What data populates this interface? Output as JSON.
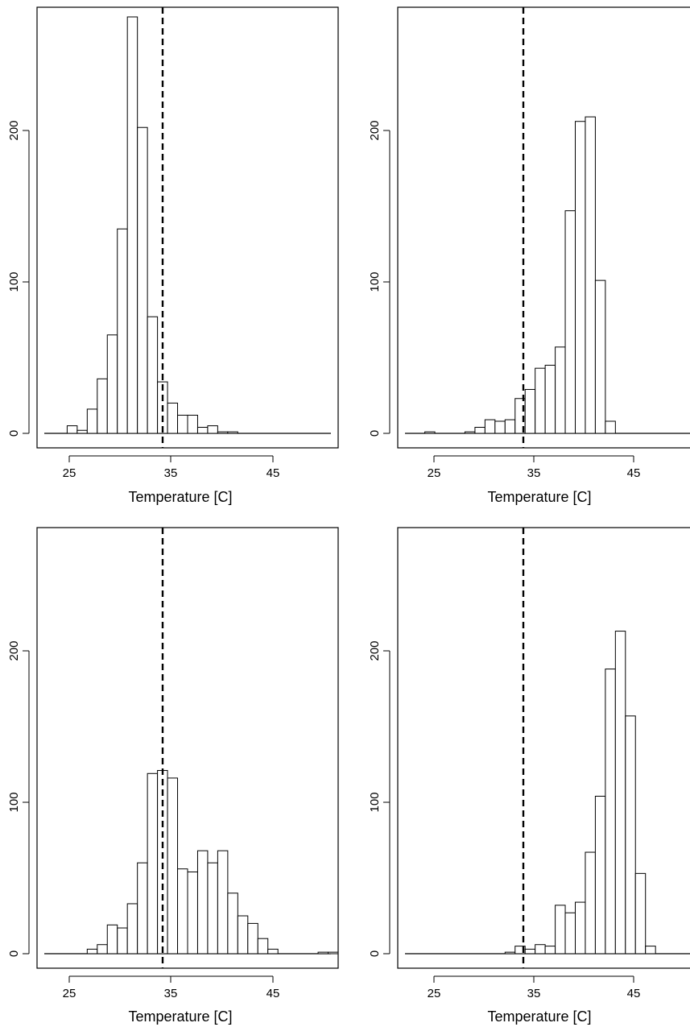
{
  "chart_data": [
    {
      "type": "bar",
      "xlabel": "Temperature [C]",
      "ylabel": "",
      "title": "",
      "xlim": [
        21,
        51
      ],
      "ylim": [
        -15,
        283
      ],
      "xticks": [
        "25",
        "35",
        "45"
      ],
      "yticks": [
        "0",
        "100",
        "200"
      ],
      "threshold": 34,
      "bin_width": 1,
      "bins": [
        {
          "x0": 24,
          "value": 5
        },
        {
          "x0": 25,
          "value": 2
        },
        {
          "x0": 26,
          "value": 16
        },
        {
          "x0": 27,
          "value": 36
        },
        {
          "x0": 28,
          "value": 65
        },
        {
          "x0": 29,
          "value": 135
        },
        {
          "x0": 30,
          "value": 275
        },
        {
          "x0": 31,
          "value": 202
        },
        {
          "x0": 32,
          "value": 77
        },
        {
          "x0": 33,
          "value": 34
        },
        {
          "x0": 34,
          "value": 20
        },
        {
          "x0": 35,
          "value": 12
        },
        {
          "x0": 36,
          "value": 12
        },
        {
          "x0": 37,
          "value": 4
        },
        {
          "x0": 38,
          "value": 5
        },
        {
          "x0": 39,
          "value": 1
        },
        {
          "x0": 40,
          "value": 1
        }
      ]
    },
    {
      "type": "bar",
      "xlabel": "Temperature [C]",
      "ylabel": "",
      "title": "",
      "xlim": [
        19.3,
        49
      ],
      "ylim": [
        -15,
        283
      ],
      "xticks": [
        "25",
        "35",
        "45"
      ],
      "yticks": [
        "0",
        "100",
        "200"
      ],
      "threshold": 34,
      "bin_width": 1,
      "bins": [
        {
          "x0": 22,
          "value": 1
        },
        {
          "x0": 26,
          "value": 1
        },
        {
          "x0": 27,
          "value": 4
        },
        {
          "x0": 28,
          "value": 9
        },
        {
          "x0": 29,
          "value": 8
        },
        {
          "x0": 30,
          "value": 9
        },
        {
          "x0": 31,
          "value": 23
        },
        {
          "x0": 32,
          "value": 29
        },
        {
          "x0": 33,
          "value": 43
        },
        {
          "x0": 34,
          "value": 45
        },
        {
          "x0": 35,
          "value": 57
        },
        {
          "x0": 36,
          "value": 147
        },
        {
          "x0": 37,
          "value": 206
        },
        {
          "x0": 38,
          "value": 209
        },
        {
          "x0": 39,
          "value": 101
        },
        {
          "x0": 40,
          "value": 8
        }
      ]
    },
    {
      "type": "bar",
      "xlabel": "Temperature [C]",
      "ylabel": "",
      "title": "",
      "xlim": [
        21,
        51
      ],
      "ylim": [
        -15,
        283
      ],
      "xticks": [
        "25",
        "35",
        "45"
      ],
      "yticks": [
        "0",
        "100",
        "200"
      ],
      "threshold": 34,
      "bin_width": 1,
      "bins": [
        {
          "x0": 26,
          "value": 3
        },
        {
          "x0": 27,
          "value": 6
        },
        {
          "x0": 28,
          "value": 19
        },
        {
          "x0": 29,
          "value": 17
        },
        {
          "x0": 30,
          "value": 33
        },
        {
          "x0": 31,
          "value": 60
        },
        {
          "x0": 32,
          "value": 119
        },
        {
          "x0": 33,
          "value": 121
        },
        {
          "x0": 34,
          "value": 116
        },
        {
          "x0": 35,
          "value": 56
        },
        {
          "x0": 36,
          "value": 54
        },
        {
          "x0": 37,
          "value": 68
        },
        {
          "x0": 38,
          "value": 60
        },
        {
          "x0": 39,
          "value": 68
        },
        {
          "x0": 40,
          "value": 40
        },
        {
          "x0": 41,
          "value": 25
        },
        {
          "x0": 42,
          "value": 20
        },
        {
          "x0": 43,
          "value": 10
        },
        {
          "x0": 44,
          "value": 3
        },
        {
          "x0": 49,
          "value": 1
        },
        {
          "x0": 50,
          "value": 1
        }
      ]
    },
    {
      "type": "bar",
      "xlabel": "Temperature [C]",
      "ylabel": "",
      "title": "",
      "xlim": [
        19.3,
        49
      ],
      "ylim": [
        -15,
        283
      ],
      "xticks": [
        "25",
        "35",
        "45"
      ],
      "yticks": [
        "0",
        "100",
        "200"
      ],
      "threshold": 34,
      "bin_width": 1,
      "bins": [
        {
          "x0": 30,
          "value": 1
        },
        {
          "x0": 31,
          "value": 5
        },
        {
          "x0": 32,
          "value": 3
        },
        {
          "x0": 33,
          "value": 6
        },
        {
          "x0": 34,
          "value": 5
        },
        {
          "x0": 35,
          "value": 32
        },
        {
          "x0": 36,
          "value": 27
        },
        {
          "x0": 37,
          "value": 34
        },
        {
          "x0": 38,
          "value": 67
        },
        {
          "x0": 39,
          "value": 104
        },
        {
          "x0": 40,
          "value": 188
        },
        {
          "x0": 41,
          "value": 213
        },
        {
          "x0": 42,
          "value": 157
        },
        {
          "x0": 43,
          "value": 53
        },
        {
          "x0": 44,
          "value": 5
        }
      ]
    }
  ]
}
